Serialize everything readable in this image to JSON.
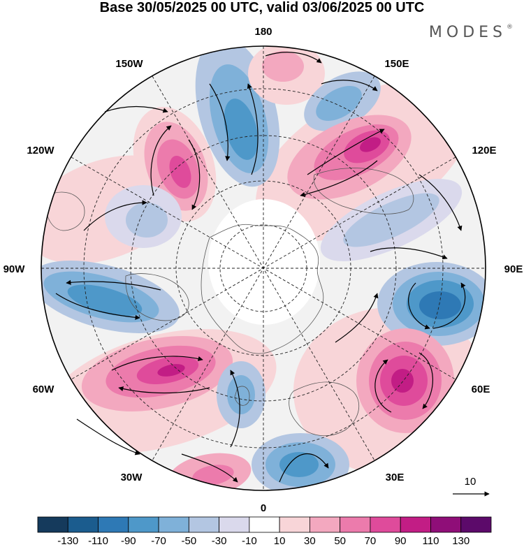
{
  "title": "Base 30/05/2025 00 UTC, valid 03/06/2025 00 UTC",
  "brand": "MODES",
  "brand_mark": "®",
  "longitude_labels": {
    "lon_0": "0",
    "lon_30e": "30E",
    "lon_60e": "60E",
    "lon_90e": "90E",
    "lon_120e": "120E",
    "lon_150e": "150E",
    "lon_180": "180",
    "lon_150w": "150W",
    "lon_120w": "120W",
    "lon_90w": "90W",
    "lon_60w": "60W",
    "lon_30w": "30W"
  },
  "reference_vector": {
    "label": "10"
  },
  "colorbar": {
    "tick_labels": [
      "-130",
      "-110",
      "-90",
      "-70",
      "-50",
      "-30",
      "-10",
      "10",
      "30",
      "50",
      "70",
      "90",
      "110",
      "130"
    ],
    "colors": [
      "#153a5c",
      "#1b5c8e",
      "#2e79b5",
      "#4e98c9",
      "#7fb1d9",
      "#b3c6e2",
      "#dad9ec",
      "#ffffff",
      "#f8d5d8",
      "#f3a8bf",
      "#ec7bac",
      "#df4b9b",
      "#c21d85",
      "#8f0e78",
      "#5c0a6a"
    ]
  },
  "anomaly_features": [
    {
      "name": "trough-150w",
      "sign": "negative",
      "level": -70
    },
    {
      "name": "ridge-130w",
      "sign": "positive",
      "level": 90
    },
    {
      "name": "ridge-180",
      "sign": "positive",
      "level": 50
    },
    {
      "name": "trough-160e",
      "sign": "negative",
      "level": -70
    },
    {
      "name": "ridge-130e",
      "sign": "positive",
      "level": 110
    },
    {
      "name": "trough-100w",
      "sign": "negative",
      "level": -50
    },
    {
      "name": "trough-80w",
      "sign": "negative",
      "level": -90
    },
    {
      "name": "trough-100e",
      "sign": "negative",
      "level": -50
    },
    {
      "name": "trough-80e",
      "sign": "negative",
      "level": -110
    },
    {
      "name": "ridge-50w",
      "sign": "positive",
      "level": 110
    },
    {
      "name": "ridge-55e",
      "sign": "positive",
      "level": 110
    },
    {
      "name": "trough-10w",
      "sign": "negative",
      "level": -70
    },
    {
      "name": "trough-15e",
      "sign": "negative",
      "level": -90
    },
    {
      "name": "ridge-40w",
      "sign": "positive",
      "level": 70
    }
  ]
}
